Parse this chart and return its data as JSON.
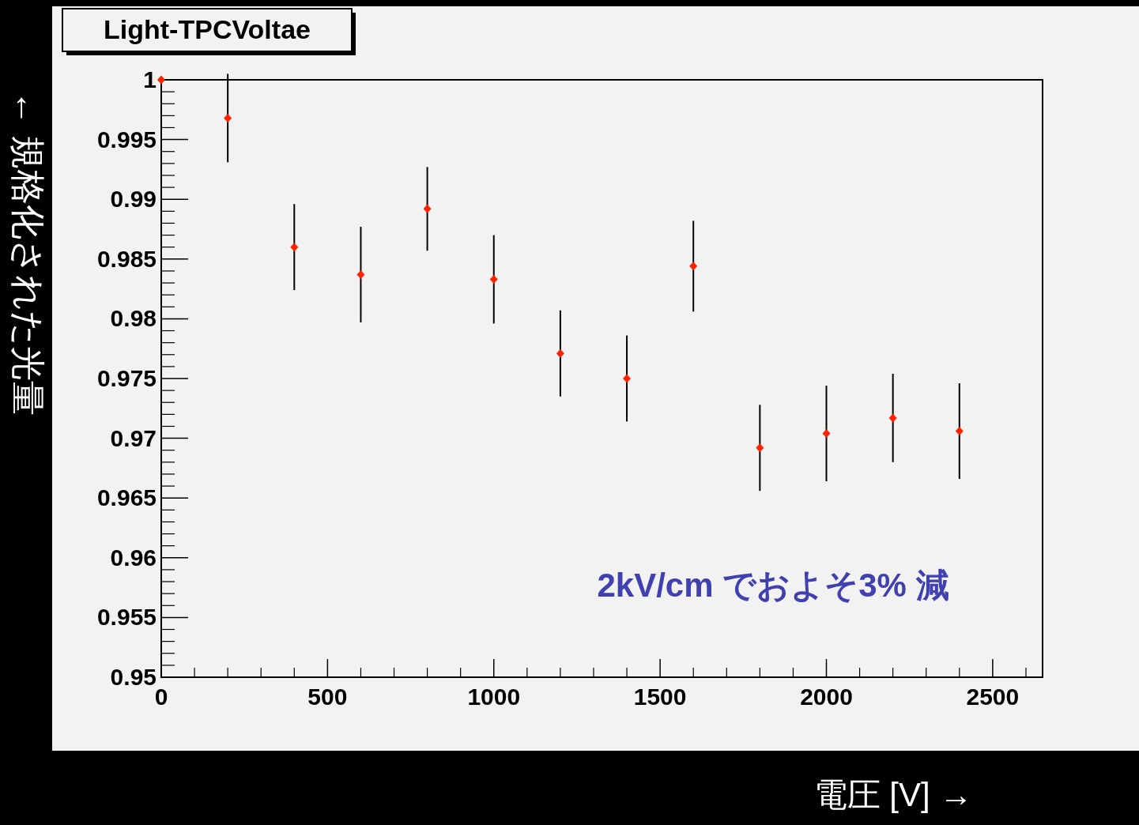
{
  "chart_data": {
    "type": "scatter",
    "title": "Light-TPCVoltae",
    "xlabel": "電圧 [V] →",
    "ylabel": "← 規格化された光量",
    "annotations": [
      "2kV/cm でおよそ3% 減"
    ],
    "x": [
      0,
      200,
      400,
      600,
      800,
      1000,
      1200,
      1400,
      1600,
      1800,
      2000,
      2200,
      2400
    ],
    "series": [
      {
        "color": "#ff2200",
        "values": [
          1.0,
          0.9968,
          0.986,
          0.9837,
          0.9892,
          0.9833,
          0.9771,
          0.975,
          0.9844,
          0.9692,
          0.9704,
          0.9717,
          0.9706
        ],
        "errors": [
          null,
          0.0037,
          0.0036,
          0.004,
          0.0035,
          0.0037,
          0.0036,
          0.0036,
          0.0038,
          0.0036,
          0.004,
          0.0037,
          0.004
        ]
      }
    ],
    "marker": "diamond",
    "xlim": [
      0,
      2650
    ],
    "xticks": [
      0,
      500,
      1000,
      1500,
      2000,
      2500
    ],
    "ylim": [
      0.95,
      1.0
    ],
    "yticks": [
      0.95,
      0.955,
      0.96,
      0.965,
      0.97,
      0.975,
      0.98,
      0.985,
      0.99,
      0.995,
      1
    ]
  }
}
